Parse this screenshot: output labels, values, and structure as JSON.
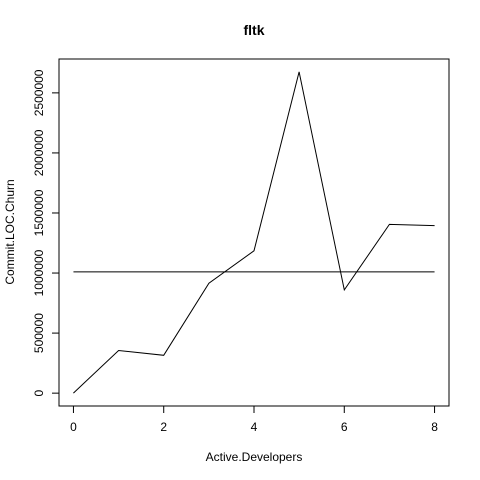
{
  "chart_data": {
    "type": "line",
    "title": "fltk",
    "xlabel": "Active.Developers",
    "ylabel": "Commit.LOC.Churn",
    "x": [
      0,
      1,
      2,
      3,
      4,
      5,
      6,
      7,
      8
    ],
    "series": [
      {
        "name": "Commit.LOC.Churn",
        "values": [
          0,
          355000,
          315000,
          915000,
          1185000,
          2675000,
          860000,
          1405000,
          1395000
        ]
      }
    ],
    "reference_line": {
      "y": 1010000
    },
    "xlim": [
      -0.32,
      8.32
    ],
    "ylim": [
      -107000,
      2782000
    ],
    "xticks": [
      0,
      2,
      4,
      6,
      8
    ],
    "yticks": [
      0,
      500000,
      1000000,
      1500000,
      2000000,
      2500000
    ],
    "xtick_labels": [
      "0",
      "2",
      "4",
      "6",
      "8"
    ],
    "ytick_labels": [
      "0",
      "500000",
      "1000000",
      "1500000",
      "2000000",
      "2500000"
    ]
  }
}
